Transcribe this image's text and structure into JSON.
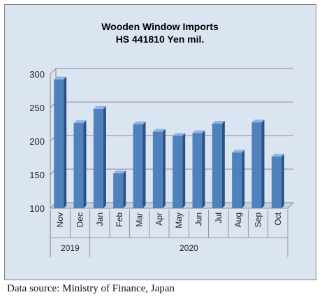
{
  "chart_data": {
    "type": "bar",
    "title": "Wooden Window Imports",
    "subtitle": "HS 441810 Yen mil.",
    "categories": [
      "Nov",
      "Dec",
      "Jan",
      "Feb",
      "Mar",
      "Apr",
      "May",
      "Jun",
      "Jul",
      "Aug",
      "Sep",
      "Oct"
    ],
    "values": [
      292,
      227,
      248,
      152,
      225,
      214,
      208,
      212,
      226,
      183,
      228,
      177
    ],
    "year_groups": [
      {
        "label": "2019",
        "count": 2
      },
      {
        "label": "2020",
        "count": 10
      }
    ],
    "ylim": [
      100,
      300
    ],
    "yticks": [
      "100",
      "150",
      "200",
      "250",
      "300"
    ],
    "grid": true,
    "legend": "none",
    "colors": {
      "bar_front": "#4f81bd",
      "bar_side": "#2c5283",
      "bar_top": "#8eb4e3",
      "background": "#dbe5f1",
      "grid": "#8c8c8c",
      "frame": "#7f7f7f"
    }
  },
  "source_note": "Data source: Ministry of Finance, Japan"
}
